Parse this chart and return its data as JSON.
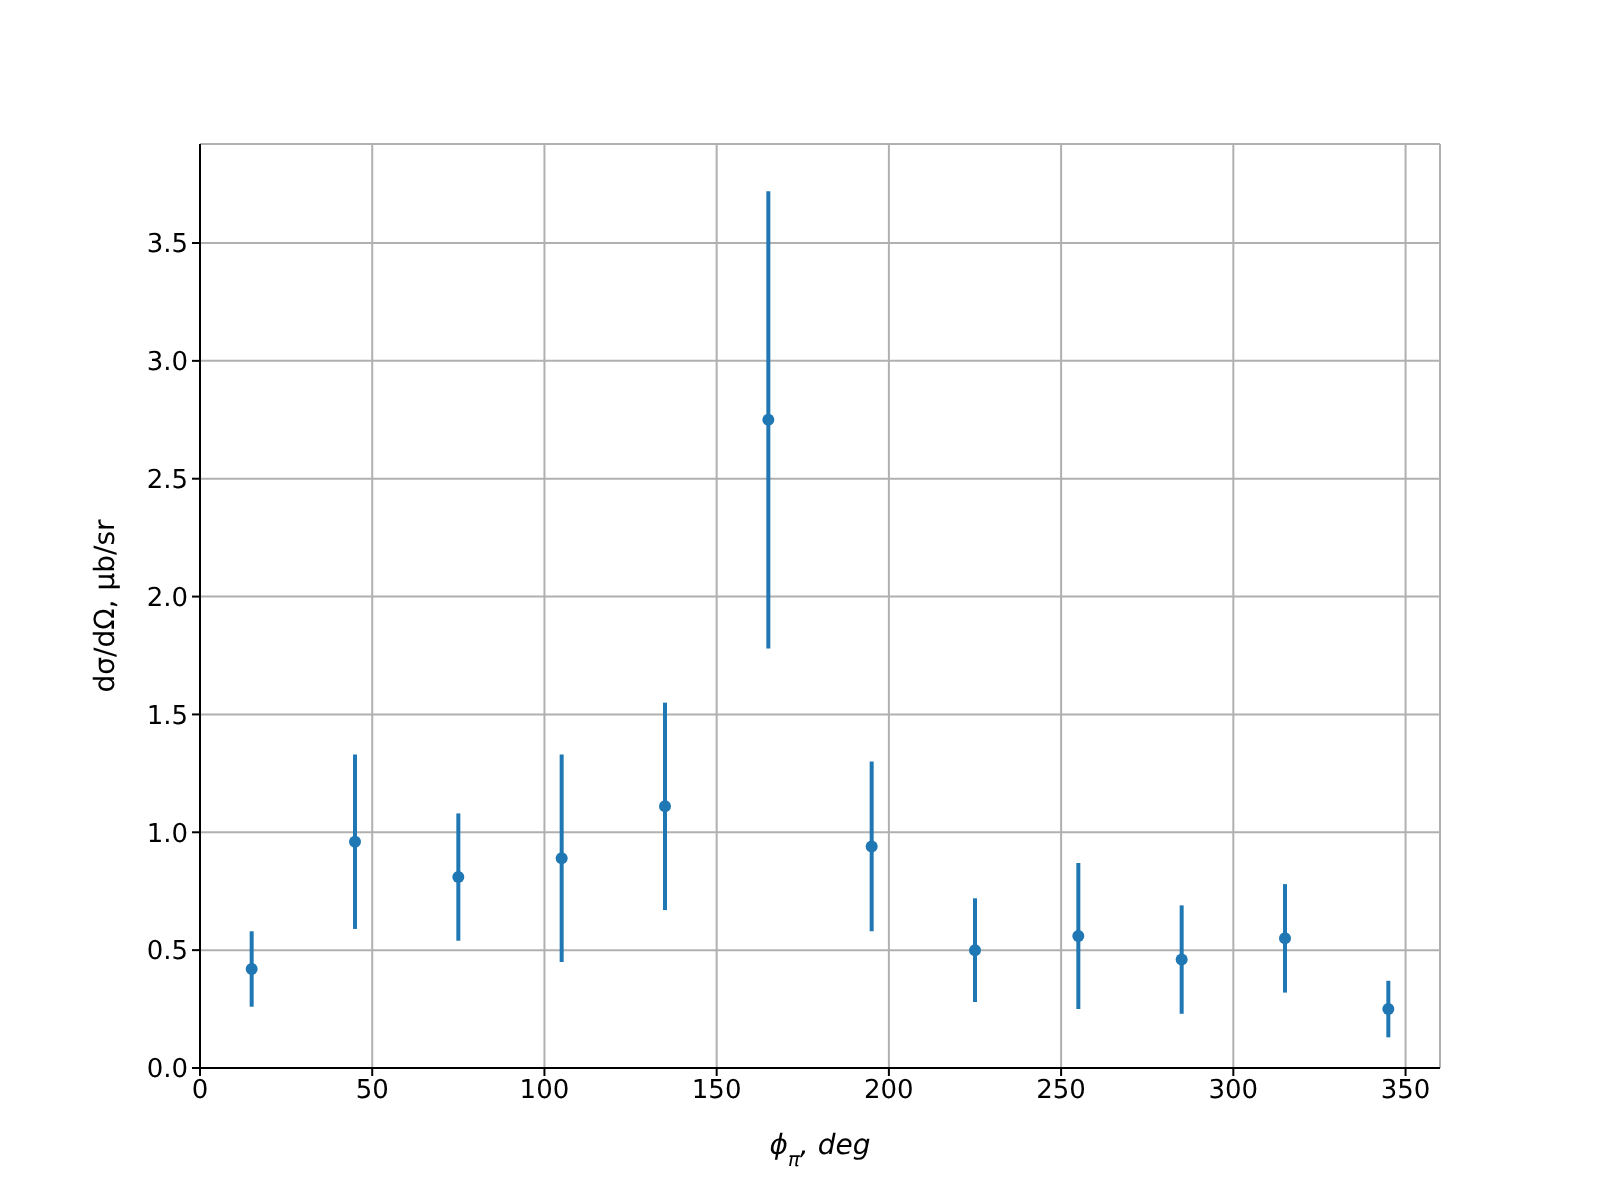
{
  "chart_data": {
    "type": "scatter",
    "xlabel": "ϕ$_{π}$, deg",
    "ylabel": "dσ/dΩ, μb/sr",
    "x": [
      15,
      45,
      75,
      105,
      135,
      165,
      195,
      225,
      255,
      285,
      315,
      345
    ],
    "values": [
      0.42,
      0.96,
      0.81,
      0.89,
      1.11,
      2.75,
      0.94,
      0.5,
      0.56,
      0.46,
      0.55,
      0.25
    ],
    "errors": [
      0.16,
      0.37,
      0.27,
      0.44,
      0.44,
      0.97,
      0.36,
      0.22,
      0.31,
      0.23,
      0.23,
      0.12
    ],
    "color": "#1f77b4",
    "marker": "circle",
    "grid": true,
    "xlim": [
      0,
      360
    ],
    "xticks": [
      0,
      50,
      100,
      150,
      200,
      250,
      300,
      350
    ],
    "ylim": [
      0,
      3.92
    ],
    "yticks": [
      {
        "value": 0,
        "label": "0.0"
      },
      {
        "value": 0.5,
        "label": "0.5"
      },
      {
        "value": 1,
        "label": "1.0"
      },
      {
        "value": 1.5,
        "label": "1.5"
      },
      {
        "value": 2,
        "label": "2.0"
      },
      {
        "value": 2.5,
        "label": "2.5"
      },
      {
        "value": 3,
        "label": "3.0"
      },
      {
        "value": 3.5,
        "label": "3.5"
      }
    ]
  }
}
